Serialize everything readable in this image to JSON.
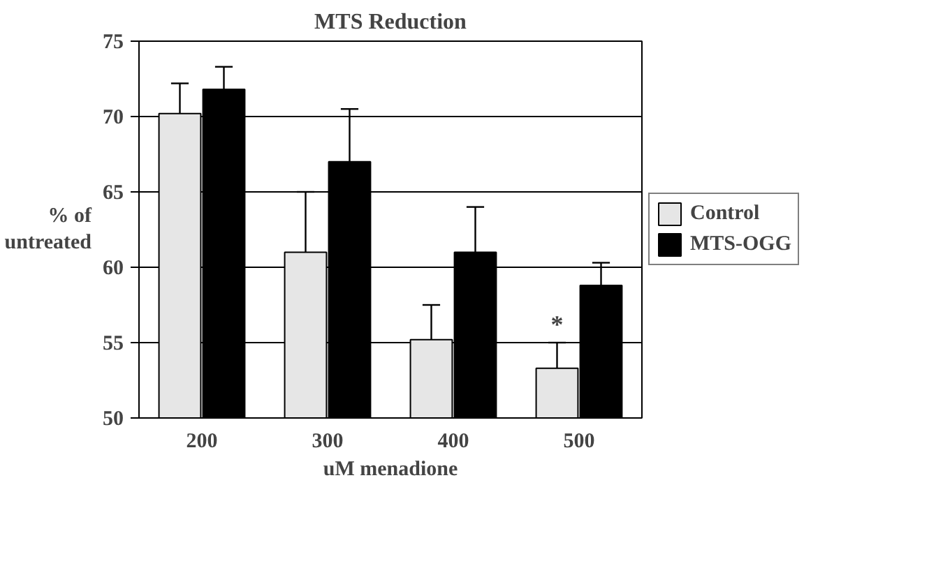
{
  "chart_data": {
    "type": "bar",
    "title": "MTS Reduction",
    "xlabel": "uM menadione",
    "ylabel": "% of\nuntreated",
    "categories": [
      "200",
      "300",
      "400",
      "500"
    ],
    "series": [
      {
        "name": "Control",
        "color": "#e6e6e6",
        "values": [
          70.2,
          61,
          55.2,
          53.3
        ],
        "errors": [
          [
            70.2,
            72.2
          ],
          [
            61,
            65
          ],
          [
            55.2,
            57.5
          ],
          [
            53.3,
            55
          ]
        ]
      },
      {
        "name": "MTS-OGG",
        "color": "#000000",
        "values": [
          71.8,
          67,
          61,
          58.8
        ],
        "errors": [
          [
            71.8,
            73.3
          ],
          [
            67,
            70.5
          ],
          [
            61,
            64
          ],
          [
            58.8,
            60.3
          ]
        ]
      }
    ],
    "ylim": [
      50,
      75
    ],
    "yticks": [
      50,
      55,
      60,
      65,
      70,
      75
    ],
    "grid": "y",
    "legend": "right",
    "annotations": [
      {
        "text": "*",
        "x": "500",
        "y": 55.3
      }
    ]
  }
}
